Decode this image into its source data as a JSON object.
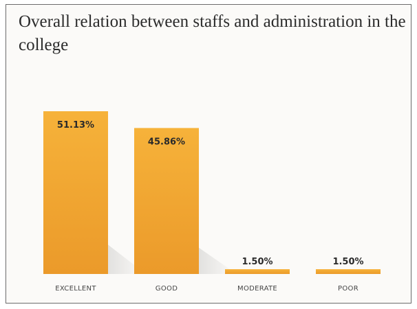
{
  "chart_data": {
    "type": "bar",
    "title": "Overall relation between staffs and administration in the college",
    "categories": [
      "EXCELLENT",
      "GOOD",
      "MODERATE",
      "POOR"
    ],
    "values": [
      51.13,
      45.86,
      1.5,
      1.5
    ],
    "value_labels": [
      "51.13%",
      "45.86%",
      "1.50%",
      "1.50%"
    ],
    "ylim": [
      0,
      51.13
    ],
    "grid": false,
    "colors": {
      "bar_top": "#f6b23a",
      "bar_bottom": "#eb9a2a"
    }
  }
}
